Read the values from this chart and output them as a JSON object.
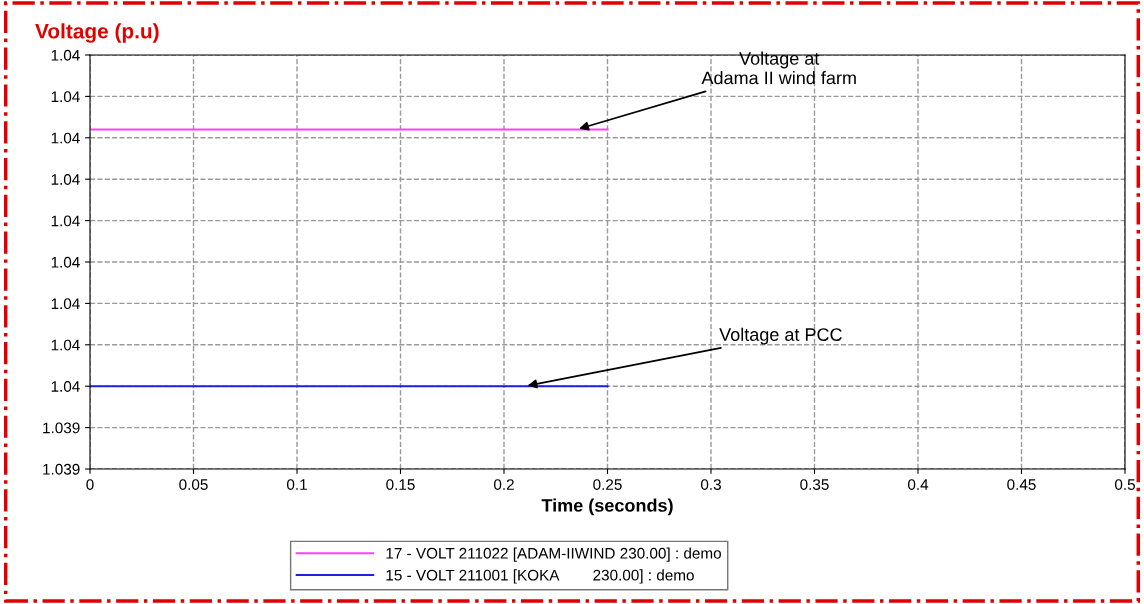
{
  "chart_data": {
    "type": "line",
    "title": "Voltage (p.u)",
    "xlabel": "Time (seconds)",
    "x": [
      0,
      0.25
    ],
    "series": [
      {
        "name": "17 - VOLT 211022 [ADAM-IIWIND 230.00] : demo",
        "color": "#ff40ff",
        "values": [
          1.03981,
          1.03981
        ]
      },
      {
        "name": "15 - VOLT 211001 [KOKA        230.00] : demo",
        "color": "#2020e0",
        "values": [
          1.0395,
          1.0395
        ]
      }
    ],
    "xlim": [
      0,
      0.5
    ],
    "xticks": [
      0,
      0.05,
      0.1,
      0.15,
      0.2,
      0.25,
      0.3,
      0.35,
      0.4,
      0.45,
      0.5
    ],
    "ylim": [
      1.0394,
      1.0399
    ],
    "yticks": [
      {
        "value": 1.0394,
        "label": "1.039"
      },
      {
        "value": 1.03945,
        "label": "1.039"
      },
      {
        "value": 1.0395,
        "label": "1.04"
      },
      {
        "value": 1.03955,
        "label": "1.04"
      },
      {
        "value": 1.0396,
        "label": "1.04"
      },
      {
        "value": 1.03965,
        "label": "1.04"
      },
      {
        "value": 1.0397,
        "label": "1.04"
      },
      {
        "value": 1.03975,
        "label": "1.04"
      },
      {
        "value": 1.0398,
        "label": "1.04"
      },
      {
        "value": 1.03985,
        "label": "1.04"
      },
      {
        "value": 1.0399,
        "label": "1.04"
      }
    ],
    "annotations": [
      {
        "text": "Voltage at\nAdama II wind farm",
        "x": 0.235,
        "y": 1.03981
      },
      {
        "text": "Voltage at PCC",
        "x": 0.21,
        "y": 1.0395
      }
    ],
    "grid": true,
    "legend": "bottom",
    "marker": "none",
    "line_style": "solid"
  }
}
